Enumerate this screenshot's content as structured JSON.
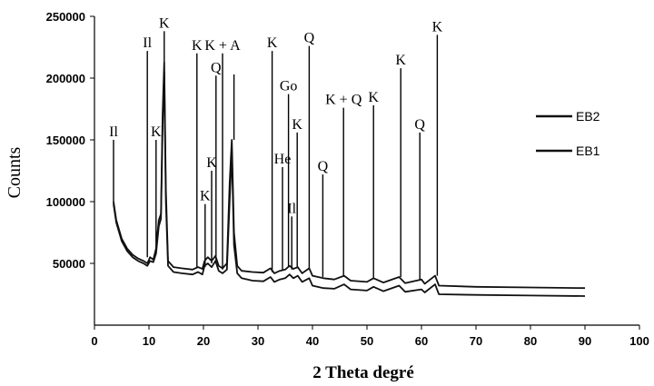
{
  "chart_data": {
    "type": "line",
    "xlabel": "2 Theta degré",
    "ylabel": "Counts",
    "xlim": [
      0,
      100
    ],
    "ylim": [
      0,
      250000
    ],
    "xticks": [
      0,
      10,
      20,
      30,
      40,
      50,
      60,
      70,
      80,
      90,
      100
    ],
    "yticks": [
      50000,
      100000,
      150000,
      200000,
      250000
    ],
    "grid": false,
    "legend_position": "right",
    "series": [
      {
        "name": "EB2",
        "color": "#111111",
        "points": [
          [
            3.5,
            100000
          ],
          [
            4,
            85000
          ],
          [
            5,
            70000
          ],
          [
            6,
            62000
          ],
          [
            7,
            57000
          ],
          [
            8,
            54000
          ],
          [
            9,
            52000
          ],
          [
            9.7,
            50000
          ],
          [
            10.2,
            55000
          ],
          [
            10.8,
            53000
          ],
          [
            11.3,
            62000
          ],
          [
            11.8,
            85000
          ],
          [
            12.2,
            90000
          ],
          [
            12.5,
            170000
          ],
          [
            12.8,
            213000
          ],
          [
            13.1,
            110000
          ],
          [
            13.5,
            52000
          ],
          [
            14.5,
            47000
          ],
          [
            16,
            46000
          ],
          [
            18,
            45000
          ],
          [
            19,
            47000
          ],
          [
            19.8,
            45500
          ],
          [
            20.2,
            52000
          ],
          [
            20.8,
            55000
          ],
          [
            21.5,
            52000
          ],
          [
            22.2,
            56000
          ],
          [
            22.8,
            48000
          ],
          [
            23.5,
            46000
          ],
          [
            24.3,
            50000
          ],
          [
            24.8,
            115000
          ],
          [
            25.2,
            150000
          ],
          [
            25.6,
            75000
          ],
          [
            26.2,
            48000
          ],
          [
            27,
            44000
          ],
          [
            29,
            43000
          ],
          [
            31,
            42500
          ],
          [
            32.3,
            46000
          ],
          [
            33,
            42000
          ],
          [
            34,
            44000
          ],
          [
            35,
            45000
          ],
          [
            35.8,
            48000
          ],
          [
            36.5,
            45500
          ],
          [
            37.3,
            47000
          ],
          [
            38.1,
            42000
          ],
          [
            39.4,
            46000
          ],
          [
            40,
            40000
          ],
          [
            42,
            38000
          ],
          [
            44,
            37000
          ],
          [
            45.8,
            40000
          ],
          [
            47,
            36000
          ],
          [
            50,
            35000
          ],
          [
            51.2,
            38000
          ],
          [
            53,
            34500
          ],
          [
            55.9,
            39000
          ],
          [
            57,
            34000
          ],
          [
            60,
            37000
          ],
          [
            60.6,
            33500
          ],
          [
            62.5,
            40000
          ],
          [
            63.2,
            32000
          ],
          [
            70,
            31000
          ],
          [
            80,
            30500
          ],
          [
            90,
            30000
          ]
        ]
      },
      {
        "name": "EB1",
        "color": "#111111",
        "points": [
          [
            3.5,
            98000
          ],
          [
            4,
            83000
          ],
          [
            5,
            68000
          ],
          [
            6,
            60000
          ],
          [
            7,
            55000
          ],
          [
            8,
            52000
          ],
          [
            9,
            50000
          ],
          [
            9.7,
            48000
          ],
          [
            10.2,
            52000
          ],
          [
            10.8,
            51000
          ],
          [
            11.3,
            58000
          ],
          [
            11.8,
            80000
          ],
          [
            12.2,
            86000
          ],
          [
            12.5,
            160000
          ],
          [
            12.8,
            205000
          ],
          [
            13.1,
            100000
          ],
          [
            13.5,
            48000
          ],
          [
            14.5,
            43000
          ],
          [
            16,
            42000
          ],
          [
            18,
            41000
          ],
          [
            19,
            43000
          ],
          [
            19.8,
            41000
          ],
          [
            20.2,
            48000
          ],
          [
            20.8,
            50000
          ],
          [
            21.5,
            47000
          ],
          [
            22.2,
            52000
          ],
          [
            22.8,
            44000
          ],
          [
            23.5,
            42000
          ],
          [
            24.3,
            45000
          ],
          [
            24.8,
            100000
          ],
          [
            25.2,
            140000
          ],
          [
            25.6,
            65000
          ],
          [
            26.2,
            42000
          ],
          [
            27,
            38000
          ],
          [
            29,
            36000
          ],
          [
            31,
            35500
          ],
          [
            32.3,
            39000
          ],
          [
            33,
            35000
          ],
          [
            34,
            37000
          ],
          [
            35,
            38000
          ],
          [
            35.8,
            41000
          ],
          [
            36.5,
            38000
          ],
          [
            37.3,
            40000
          ],
          [
            38.1,
            35000
          ],
          [
            39.4,
            38000
          ],
          [
            40,
            32000
          ],
          [
            42,
            30000
          ],
          [
            44,
            29500
          ],
          [
            45.8,
            33000
          ],
          [
            47,
            29000
          ],
          [
            50,
            28000
          ],
          [
            51.2,
            31000
          ],
          [
            53,
            27500
          ],
          [
            55.9,
            32000
          ],
          [
            57,
            27000
          ],
          [
            60,
            29000
          ],
          [
            60.6,
            26500
          ],
          [
            62.5,
            33000
          ],
          [
            63.2,
            25000
          ],
          [
            70,
            24500
          ],
          [
            80,
            24000
          ],
          [
            90,
            23500
          ]
        ]
      }
    ],
    "annotations": [
      {
        "label": "Il",
        "x": 3.5,
        "top": 150000,
        "bottom": 98000
      },
      {
        "label": "Il",
        "x": 9.7,
        "top": 222000,
        "bottom": 55000
      },
      {
        "label": "K",
        "x": 11.3,
        "top": 150000,
        "bottom": 60000
      },
      {
        "label": "K",
        "x": 12.8,
        "top": 238000,
        "bottom": 200000
      },
      {
        "label": "K",
        "x": 18.8,
        "top": 220000,
        "bottom": 47000
      },
      {
        "label": "K",
        "x": 20.3,
        "top": 98000,
        "bottom": 47000
      },
      {
        "label": "K",
        "x": 21.5,
        "top": 125000,
        "bottom": 50000
      },
      {
        "label": "Q",
        "x": 22.3,
        "top": 202000,
        "bottom": 52000
      },
      {
        "label": "K + A",
        "x": 23.5,
        "top": 220000,
        "bottom": 45000
      },
      {
        "label": "",
        "x": 25.6,
        "top": 203000,
        "bottom": 150000
      },
      {
        "label": "K",
        "x": 32.6,
        "top": 222000,
        "bottom": 43000
      },
      {
        "label": "He",
        "x": 34.5,
        "top": 128000,
        "bottom": 44000
      },
      {
        "label": "Go",
        "x": 35.6,
        "top": 187000,
        "bottom": 47000
      },
      {
        "label": "Il",
        "x": 36.2,
        "top": 88000,
        "bottom": 45000
      },
      {
        "label": "K",
        "x": 37.2,
        "top": 156000,
        "bottom": 46000
      },
      {
        "label": "Q",
        "x": 39.4,
        "top": 226000,
        "bottom": 46000
      },
      {
        "label": "Q",
        "x": 41.9,
        "top": 122000,
        "bottom": 39000
      },
      {
        "label": "K + Q",
        "x": 45.7,
        "top": 176000,
        "bottom": 40000
      },
      {
        "label": "K",
        "x": 51.2,
        "top": 178000,
        "bottom": 38000
      },
      {
        "label": "K",
        "x": 56.2,
        "top": 208000,
        "bottom": 39000
      },
      {
        "label": "Q",
        "x": 59.7,
        "top": 156000,
        "bottom": 36000
      },
      {
        "label": "K",
        "x": 62.9,
        "top": 235000,
        "bottom": 40000
      }
    ]
  }
}
